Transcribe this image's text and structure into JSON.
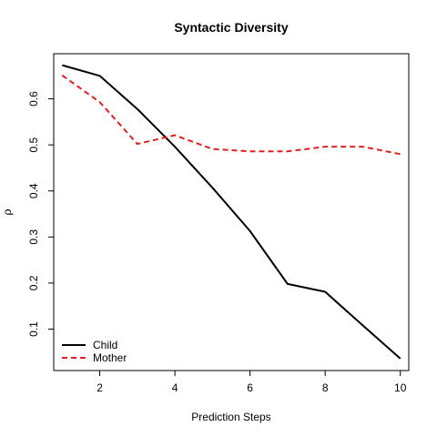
{
  "chart_data": {
    "type": "line",
    "title": "Syntactic Diversity",
    "xlabel": "Prediction Steps",
    "ylabel": "ρ",
    "x": [
      1,
      2,
      3,
      4,
      5,
      6,
      7,
      8,
      9,
      10
    ],
    "xticks": [
      2,
      4,
      6,
      8,
      10
    ],
    "yticks": [
      0.1,
      0.2,
      0.3,
      0.4,
      0.5,
      0.6
    ],
    "xlim": [
      0.775,
      10.225
    ],
    "ylim": [
      0.01,
      0.698
    ],
    "grid": false,
    "legend_position": "bottom-left",
    "series": [
      {
        "name": "Child",
        "color": "#000000",
        "dash": "solid",
        "values": [
          0.673,
          0.65,
          0.578,
          0.496,
          0.407,
          0.313,
          0.198,
          0.181,
          0.108,
          0.036
        ]
      },
      {
        "name": "Mother",
        "color": "#df2020",
        "dash": "dashed",
        "values": [
          0.651,
          0.593,
          0.502,
          0.521,
          0.491,
          0.486,
          0.486,
          0.496,
          0.496,
          0.48
        ]
      }
    ]
  }
}
